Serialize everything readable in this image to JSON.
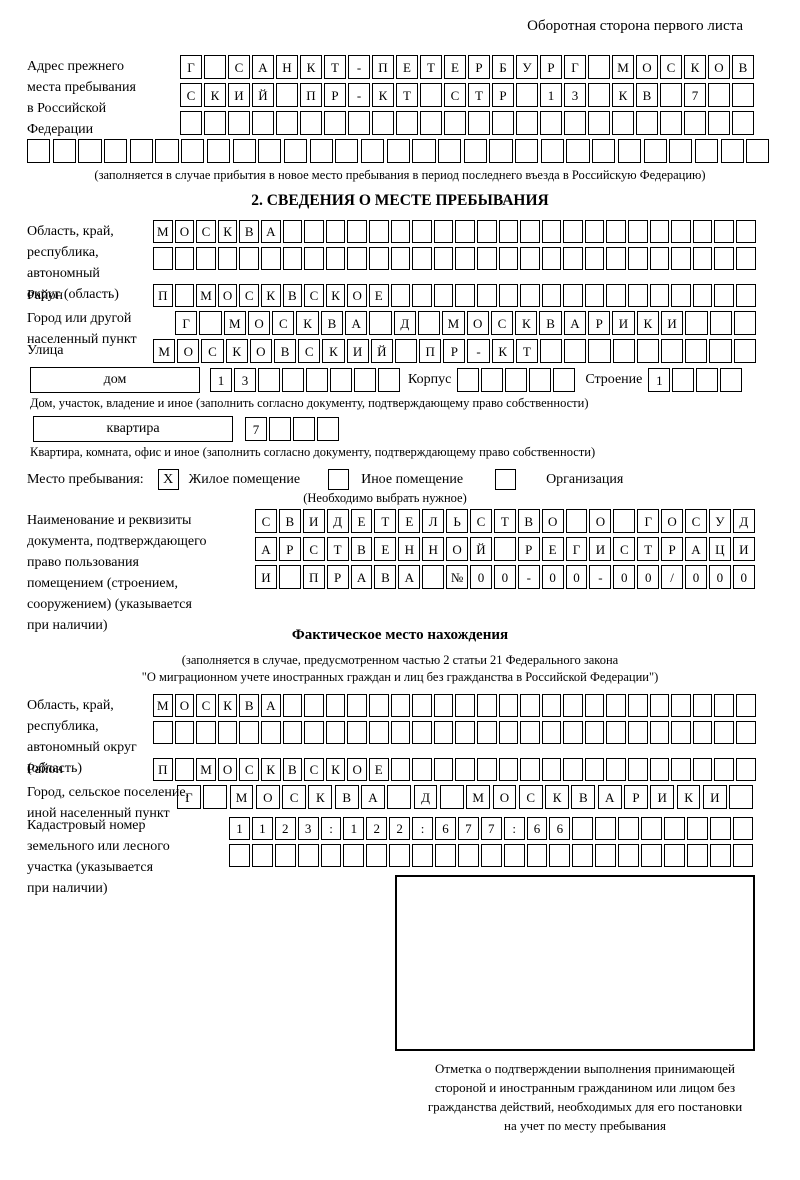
{
  "header": {
    "note": "Оборотная сторона первого листа"
  },
  "prev_address": {
    "label": "Адрес прежнего\nместа пребывания\nв Российской\nФедерации",
    "rows": [
      [
        "Г",
        "",
        "С",
        "А",
        "Н",
        "К",
        "Т",
        "-",
        "П",
        "Е",
        "Т",
        "Е",
        "Р",
        "Б",
        "У",
        "Р",
        "Г",
        "",
        "М",
        "О",
        "С",
        "К",
        "О",
        "В"
      ],
      [
        "С",
        "К",
        "И",
        "Й",
        "",
        "П",
        "Р",
        "-",
        "К",
        "Т",
        "",
        "С",
        "Т",
        "Р",
        "",
        "1",
        "3",
        "",
        "К",
        "В",
        "",
        "7",
        "",
        ""
      ],
      [
        "",
        "",
        "",
        "",
        "",
        "",
        "",
        "",
        "",
        "",
        "",
        "",
        "",
        "",
        "",
        "",
        "",
        "",
        "",
        "",
        "",
        "",
        "",
        ""
      ]
    ],
    "full_row": [
      "",
      "",
      "",
      "",
      "",
      "",
      "",
      "",
      "",
      "",
      "",
      "",
      "",
      "",
      "",
      "",
      "",
      "",
      "",
      "",
      "",
      "",
      "",
      "",
      "",
      "",
      "",
      "",
      ""
    ],
    "note": "(заполняется в случае прибытия в новое место пребывания в период последнего въезда в Российскую Федерацию)"
  },
  "section2": {
    "title": "2. СВЕДЕНИЯ О МЕСТЕ ПРЕБЫВАНИЯ",
    "oblast": {
      "label": "Область, край,\nреспублика,\nавтономный\nокруг (область)",
      "rows": [
        [
          "М",
          "О",
          "С",
          "К",
          "В",
          "А",
          "",
          "",
          "",
          "",
          "",
          "",
          "",
          "",
          "",
          "",
          "",
          "",
          "",
          "",
          "",
          "",
          "",
          "",
          "",
          "",
          "",
          ""
        ],
        [
          "",
          "",
          "",
          "",
          "",
          "",
          "",
          "",
          "",
          "",
          "",
          "",
          "",
          "",
          "",
          "",
          "",
          "",
          "",
          "",
          "",
          "",
          "",
          "",
          "",
          "",
          "",
          ""
        ]
      ]
    },
    "raion": {
      "label": "Район",
      "row": [
        "П",
        "",
        "М",
        "О",
        "С",
        "К",
        "В",
        "С",
        "К",
        "О",
        "Е",
        "",
        "",
        "",
        "",
        "",
        "",
        "",
        "",
        "",
        "",
        "",
        "",
        "",
        "",
        "",
        "",
        ""
      ]
    },
    "gorod": {
      "label": "Город или другой\nнаселенный пункт",
      "row": [
        "Г",
        "",
        "М",
        "О",
        "С",
        "К",
        "В",
        "А",
        "",
        "Д",
        "",
        "М",
        "О",
        "С",
        "К",
        "В",
        "А",
        "Р",
        "И",
        "К",
        "И",
        "",
        "",
        ""
      ]
    },
    "ulitsa": {
      "label": "Улица",
      "row": [
        "М",
        "О",
        "С",
        "К",
        "О",
        "В",
        "С",
        "К",
        "И",
        "Й",
        "",
        "П",
        "Р",
        "-",
        "К",
        "Т",
        "",
        "",
        "",
        "",
        "",
        "",
        "",
        "",
        ""
      ]
    },
    "dom": {
      "box_label": "дом",
      "cells": [
        "1",
        "3",
        "",
        "",
        "",
        "",
        "",
        ""
      ],
      "korpus_label": "Корпус",
      "korpus_cells": [
        "",
        "",
        "",
        "",
        ""
      ],
      "stroenie_label": "Строение",
      "stroenie_cells": [
        "1",
        "",
        "",
        ""
      ],
      "caption": "Дом, участок, владение и иное (заполнить согласно документу, подтверждающему право собственности)"
    },
    "kvartira": {
      "box_label": "квартира",
      "cells": [
        "7",
        "",
        "",
        ""
      ],
      "caption": "Квартира, комната, офис и иное (заполнить согласно документу, подтверждающему право собственности)"
    },
    "mesto": {
      "label": "Место пребывания:",
      "options": [
        {
          "mark": "X",
          "label": "Жилое помещение"
        },
        {
          "mark": "",
          "label": "Иное помещение"
        },
        {
          "mark": "",
          "label": "Организация"
        }
      ],
      "note": "(Необходимо выбрать нужное)"
    },
    "doc": {
      "label": "Наименование и реквизиты\nдокумента, подтверждающего\nправо пользования\nпомещением (строением,\nсооружением) (указывается\nпри наличии)",
      "rows": [
        [
          "С",
          "В",
          "И",
          "Д",
          "Е",
          "Т",
          "Е",
          "Л",
          "Ь",
          "С",
          "Т",
          "В",
          "О",
          "",
          "О",
          "",
          "Г",
          "О",
          "С",
          "У",
          "Д"
        ],
        [
          "А",
          "Р",
          "С",
          "Т",
          "В",
          "Е",
          "Н",
          "Н",
          "О",
          "Й",
          "",
          "Р",
          "Е",
          "Г",
          "И",
          "С",
          "Т",
          "Р",
          "А",
          "Ц",
          "И"
        ],
        [
          "И",
          "",
          "П",
          "Р",
          "А",
          "В",
          "А",
          "",
          "№",
          "0",
          "0",
          "-",
          "0",
          "0",
          "-",
          "0",
          "0",
          "/",
          "0",
          "0",
          "0"
        ]
      ]
    }
  },
  "factual": {
    "title": "Фактическое место нахождения",
    "note1": "(заполняется в случае, предусмотренном частью 2 статьи 21 Федерального закона",
    "note2": "\"О миграционном учете иностранных граждан и лиц без гражданства в Российской Федерации\")",
    "oblast": {
      "label": "Область, край,\nреспублика,\nавтономный округ\n(область)",
      "rows": [
        [
          "М",
          "О",
          "С",
          "К",
          "В",
          "А",
          "",
          "",
          "",
          "",
          "",
          "",
          "",
          "",
          "",
          "",
          "",
          "",
          "",
          "",
          "",
          "",
          "",
          "",
          "",
          "",
          "",
          ""
        ],
        [
          "",
          "",
          "",
          "",
          "",
          "",
          "",
          "",
          "",
          "",
          "",
          "",
          "",
          "",
          "",
          "",
          "",
          "",
          "",
          "",
          "",
          "",
          "",
          "",
          "",
          "",
          "",
          ""
        ]
      ]
    },
    "raion": {
      "label": "Район",
      "row": [
        "П",
        "",
        "М",
        "О",
        "С",
        "К",
        "В",
        "С",
        "К",
        "О",
        "Е",
        "",
        "",
        "",
        "",
        "",
        "",
        "",
        "",
        "",
        "",
        "",
        "",
        "",
        "",
        "",
        "",
        ""
      ]
    },
    "gorod": {
      "label": "Город, сельское поселение,\nиной населенный пункт",
      "row": [
        "Г",
        "",
        "М",
        "О",
        "С",
        "К",
        "В",
        "А",
        "",
        "Д",
        "",
        "М",
        "О",
        "С",
        "К",
        "В",
        "А",
        "Р",
        "И",
        "К",
        "И",
        ""
      ]
    },
    "kadastr": {
      "label": "Кадастровый номер\nземельного или лесного\nучастка (указывается\nпри наличии)",
      "rows": [
        [
          "1",
          "1",
          "2",
          "3",
          ":",
          "1",
          "2",
          "2",
          ":",
          "6",
          "7",
          "7",
          ":",
          "6",
          "6",
          "",
          "",
          "",
          "",
          "",
          "",
          "",
          ""
        ],
        [
          "",
          "",
          "",
          "",
          "",
          "",
          "",
          "",
          "",
          "",
          "",
          "",
          "",
          "",
          "",
          "",
          "",
          "",
          "",
          "",
          "",
          "",
          ""
        ]
      ]
    },
    "stamp_caption": "Отметка о подтверждении выполнения принимающей\nстороной и иностранным гражданином или лицом без\nгражданства действий, необходимых для его постановки\nна учет по месту пребывания"
  }
}
